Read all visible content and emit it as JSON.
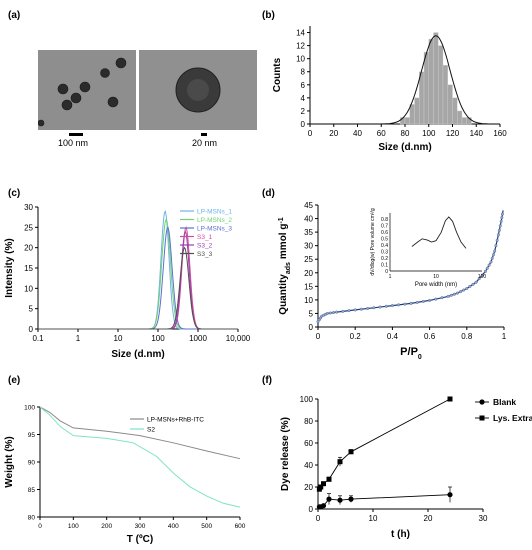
{
  "panels": {
    "a": {
      "label": "(a)",
      "scale_left": "100 nm",
      "scale_right": "20 nm"
    },
    "b": {
      "label": "(b)"
    },
    "c": {
      "label": "(c)"
    },
    "d": {
      "label": "(d)"
    },
    "e": {
      "label": "(e)"
    },
    "f": {
      "label": "(f)"
    }
  },
  "chart_data": [
    {
      "panel": "b",
      "type": "bar",
      "xlabel": "Size (d.nm)",
      "ylabel": "Counts",
      "xlim": [
        0,
        160
      ],
      "ylim": [
        0,
        15
      ],
      "xticks": [
        "0",
        "20",
        "40",
        "60",
        "80",
        "100",
        "120",
        "140",
        "160"
      ],
      "yticks": [
        "0",
        "2",
        "4",
        "6",
        "8",
        "10",
        "12",
        "14"
      ],
      "bins": [
        {
          "x": 78,
          "count": 1
        },
        {
          "x": 82,
          "count": 1
        },
        {
          "x": 86,
          "count": 3
        },
        {
          "x": 90,
          "count": 4
        },
        {
          "x": 94,
          "count": 8
        },
        {
          "x": 98,
          "count": 11
        },
        {
          "x": 102,
          "count": 13
        },
        {
          "x": 106,
          "count": 14
        },
        {
          "x": 110,
          "count": 12
        },
        {
          "x": 114,
          "count": 9
        },
        {
          "x": 118,
          "count": 6
        },
        {
          "x": 122,
          "count": 4
        },
        {
          "x": 126,
          "count": 2
        },
        {
          "x": 130,
          "count": 1
        },
        {
          "x": 134,
          "count": 1
        }
      ],
      "fit_curve": {
        "type": "gaussian",
        "mean": 106,
        "sd": 12,
        "peak": 13.5
      },
      "bar_color": "#a6a6a6",
      "grid": false
    },
    {
      "panel": "c",
      "type": "line",
      "xlabel": "Size (d.nm)",
      "ylabel": "Intensity (%)",
      "xscale": "log",
      "xlim": [
        0.1,
        10000
      ],
      "ylim": [
        0,
        30
      ],
      "xticks": [
        "0.1",
        "1",
        "10",
        "100",
        "1000",
        "10,000"
      ],
      "yticks": [
        "0",
        "5",
        "10",
        "15",
        "20",
        "25",
        "30"
      ],
      "legend_position": "top-right",
      "series": [
        {
          "name": "LP-MSNs_1",
          "color": "#6fb3e8",
          "peak_x": 150,
          "peak_y": 29,
          "width": 0.1
        },
        {
          "name": "LP-MSNs_2",
          "color": "#6fd36f",
          "peak_x": 160,
          "peak_y": 27,
          "width": 0.11
        },
        {
          "name": "LP-MSNs_3",
          "color": "#5b6fd1",
          "peak_x": 175,
          "peak_y": 25,
          "width": 0.11
        },
        {
          "name": "S3_1",
          "color": "#d64a9c",
          "peak_x": 500,
          "peak_y": 25,
          "width": 0.1
        },
        {
          "name": "S3_2",
          "color": "#9a3fb0",
          "peak_x": 480,
          "peak_y": 24,
          "width": 0.1
        },
        {
          "name": "S3_3",
          "color": "#505050",
          "peak_x": 460,
          "peak_y": 20,
          "width": 0.11
        }
      ]
    },
    {
      "panel": "d",
      "type": "line",
      "xlabel": "P/P",
      "xlabel_sub": "0",
      "ylabel": "Quantity",
      "ylabel_sub": "ads",
      "ylabel_unit": "mmol g",
      "ylabel_unit_sup": "-1",
      "xlim": [
        0,
        1
      ],
      "ylim": [
        0,
        45
      ],
      "xticks": [
        "0",
        "0.2",
        "0.4",
        "0.6",
        "0.8",
        "1"
      ],
      "yticks": [
        "0",
        "5",
        "10",
        "15",
        "20",
        "25",
        "30",
        "35",
        "40",
        "45"
      ],
      "series": [
        {
          "name": "",
          "points": [
            [
              0,
              2
            ],
            [
              0.02,
              4
            ],
            [
              0.05,
              5
            ],
            [
              0.1,
              5.5
            ],
            [
              0.2,
              6.3
            ],
            [
              0.3,
              7.1
            ],
            [
              0.4,
              7.9
            ],
            [
              0.5,
              8.7
            ],
            [
              0.6,
              9.8
            ],
            [
              0.7,
              11.3
            ],
            [
              0.75,
              12.5
            ],
            [
              0.8,
              14.2
            ],
            [
              0.85,
              16.5
            ],
            [
              0.9,
              20.5
            ],
            [
              0.93,
              24
            ],
            [
              0.95,
              28
            ],
            [
              0.97,
              34
            ],
            [
              0.985,
              39
            ],
            [
              0.995,
              43
            ]
          ]
        }
      ],
      "inset": {
        "xlabel": "Pore width (nm)",
        "ylabel": "dV/dlog(w) Pore volume cm³/g",
        "xscale": "log",
        "xlim": [
          1,
          100
        ],
        "ylim": [
          0,
          0.9
        ],
        "xticks": [
          "1",
          "10",
          "100"
        ],
        "yticks": [
          "0",
          "0.1",
          "0.2",
          "0.3",
          "0.4",
          "0.5",
          "0.6",
          "0.7",
          "0.8"
        ],
        "points": [
          [
            3,
            0.38
          ],
          [
            4,
            0.45
          ],
          [
            5,
            0.5
          ],
          [
            6.5,
            0.48
          ],
          [
            8,
            0.45
          ],
          [
            10,
            0.47
          ],
          [
            13,
            0.6
          ],
          [
            16,
            0.78
          ],
          [
            19,
            0.84
          ],
          [
            23,
            0.77
          ],
          [
            28,
            0.6
          ],
          [
            35,
            0.45
          ],
          [
            45,
            0.35
          ]
        ]
      }
    },
    {
      "panel": "e",
      "type": "line",
      "xlabel": "T (ºC)",
      "ylabel": "Weight (%)",
      "xlim": [
        0,
        600
      ],
      "ylim": [
        80,
        100
      ],
      "xticks": [
        "0",
        "100",
        "200",
        "300",
        "400",
        "500",
        "600"
      ],
      "yticks": [
        "80",
        "85",
        "90",
        "95",
        "100"
      ],
      "legend_position": "top-right",
      "series": [
        {
          "name": "LP-MSNs+RhB-ITC",
          "color": "#8a8a8a",
          "points": [
            [
              0,
              100
            ],
            [
              30,
              99
            ],
            [
              60,
              97.5
            ],
            [
              100,
              96.2
            ],
            [
              200,
              95.6
            ],
            [
              300,
              94.8
            ],
            [
              400,
              93.5
            ],
            [
              500,
              92
            ],
            [
              600,
              90.6
            ]
          ]
        },
        {
          "name": "S2",
          "color": "#7fe3c9",
          "points": [
            [
              0,
              100
            ],
            [
              30,
              98.5
            ],
            [
              60,
              96.5
            ],
            [
              100,
              94.8
            ],
            [
              200,
              94.3
            ],
            [
              280,
              93.5
            ],
            [
              350,
              91
            ],
            [
              400,
              88
            ],
            [
              450,
              85.5
            ],
            [
              500,
              83.8
            ],
            [
              550,
              82.5
            ],
            [
              600,
              81.8
            ]
          ]
        }
      ]
    },
    {
      "panel": "f",
      "type": "line",
      "xlabel": "t (h)",
      "ylabel": "Dye release (%)",
      "xlim": [
        0,
        30
      ],
      "ylim": [
        0,
        100
      ],
      "xticks": [
        "0",
        "10",
        "20",
        "30"
      ],
      "yticks": [
        "0",
        "20",
        "40",
        "60",
        "80",
        "100"
      ],
      "legend_position": "top-right",
      "series": [
        {
          "name": "Blank",
          "marker": "circle",
          "points": [
            [
              0.25,
              2
            ],
            [
              0.5,
              2
            ],
            [
              1,
              3
            ],
            [
              2,
              9
            ],
            [
              4,
              8
            ],
            [
              6,
              9
            ],
            [
              24,
              13
            ]
          ],
          "errors": [
            1,
            1,
            1,
            5,
            4,
            3,
            7
          ]
        },
        {
          "name": "Lys. Extract",
          "marker": "square",
          "points": [
            [
              0.25,
              18
            ],
            [
              0.5,
              20
            ],
            [
              1,
              23
            ],
            [
              2,
              27
            ],
            [
              4,
              43
            ],
            [
              6,
              52
            ],
            [
              24,
              100
            ]
          ],
          "errors": [
            1,
            1,
            1,
            2,
            4,
            2,
            1
          ]
        }
      ]
    }
  ]
}
